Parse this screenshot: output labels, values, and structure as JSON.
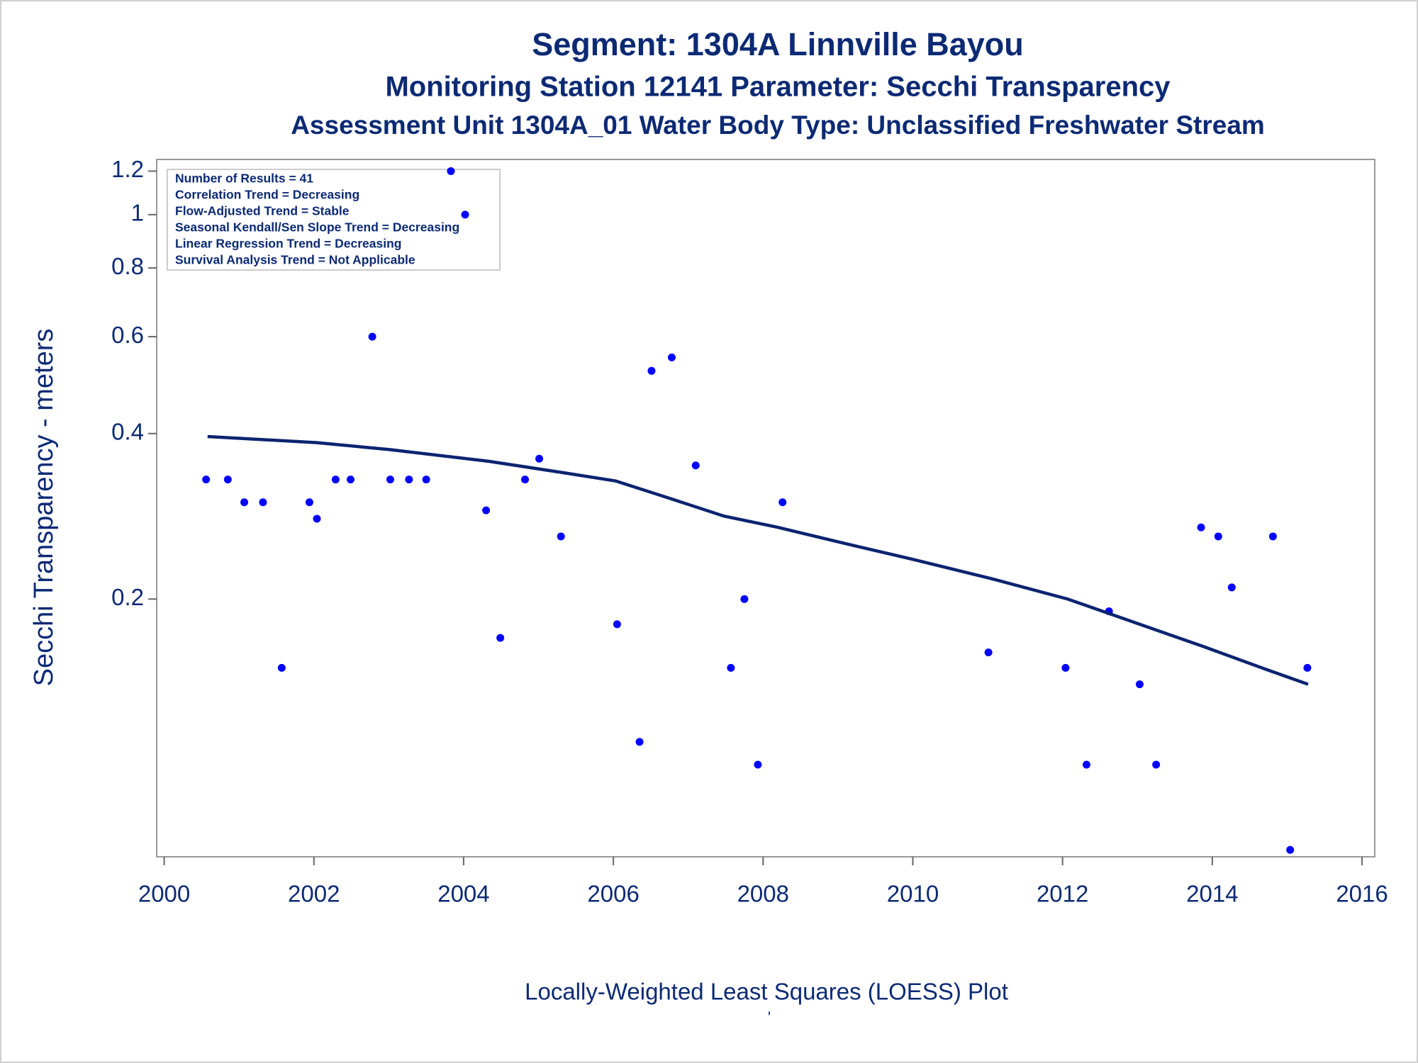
{
  "chart_data": {
    "type": "scatter",
    "title": "Segment: 1304A  Linnville Bayou",
    "subtitles": [
      "Monitoring Station 12141 Parameter: Secchi Transparency",
      "Assessment Unit 1304A_01   Water Body Type: Unclassified Freshwater Stream"
    ],
    "ylabel": "Secchi Transparency - meters",
    "xlabel": "Locally-Weighted Least Squares (LOESS) Plot",
    "footnote": "'",
    "annotations": [
      "Number of Results = 41",
      "Correlation Trend = Decreasing",
      "Flow-Adjusted Trend = Stable",
      "Seasonal Kendall/Sen Slope Trend = Decreasing",
      "Linear Regression Trend = Decreasing",
      "Survival Analysis Trend = Not Applicable"
    ],
    "log_y": true,
    "xlim": [
      1999.9,
      2016.17
    ],
    "xticks": [
      2000,
      2002,
      2004,
      2006,
      2008,
      2010,
      2012,
      2014,
      2016
    ],
    "ylim": [
      0.068,
      1.26
    ],
    "yticks": [
      0.2,
      0.4,
      0.6,
      0.8,
      1,
      1.2
    ],
    "series": [
      {
        "style": "markers",
        "color": "#0000ff",
        "x": [
          2000.56,
          2000.85,
          2001.07,
          2001.32,
          2001.57,
          2001.94,
          2002.04,
          2002.29,
          2002.49,
          2002.78,
          2003.02,
          2003.27,
          2003.5,
          2003.83,
          2004.02,
          2004.3,
          2004.49,
          2004.82,
          2005.01,
          2005.3,
          2006.05,
          2006.35,
          2006.51,
          2006.78,
          2007.1,
          2007.57,
          2007.75,
          2007.93,
          2008.26,
          2011.01,
          2012.04,
          2012.32,
          2012.62,
          2013.03,
          2013.25,
          2013.85,
          2014.08,
          2014.26,
          2014.81,
          2015.04,
          2015.27
        ],
        "values": [
          0.33,
          0.33,
          0.3,
          0.3,
          0.15,
          0.3,
          0.28,
          0.33,
          0.33,
          0.6,
          0.33,
          0.33,
          0.33,
          1.2,
          1.0,
          0.29,
          0.17,
          0.33,
          0.36,
          0.26,
          0.18,
          0.11,
          0.52,
          0.55,
          0.35,
          0.15,
          0.2,
          0.1,
          0.3,
          0.16,
          0.15,
          0.1,
          0.19,
          0.14,
          0.1,
          0.27,
          0.26,
          0.21,
          0.26,
          0.07,
          0.15
        ]
      },
      {
        "style": "line",
        "color": "#0b2470",
        "x": [
          2000.58,
          2002.04,
          2003.01,
          2004.34,
          2005.3,
          2006.03,
          2006.75,
          2007.48,
          2008.2,
          2009.17,
          2010.01,
          2011.1,
          2012.07,
          2013.03,
          2013.88,
          2014.72,
          2015.28
        ],
        "values": [
          0.395,
          0.385,
          0.374,
          0.356,
          0.34,
          0.328,
          0.305,
          0.283,
          0.27,
          0.251,
          0.236,
          0.217,
          0.2,
          0.18,
          0.164,
          0.149,
          0.14
        ]
      }
    ]
  }
}
